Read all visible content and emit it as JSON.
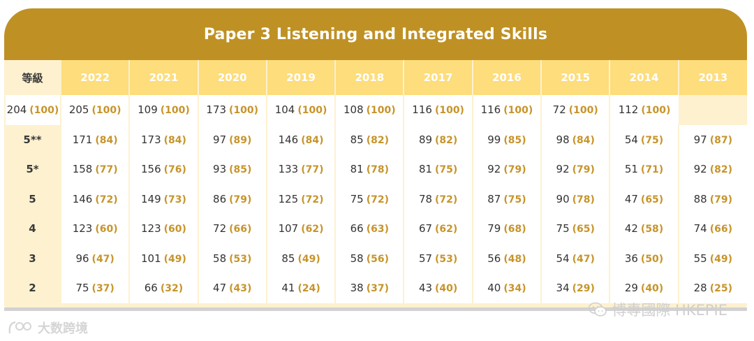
{
  "title": "Paper 3 Listening and Integrated Skills",
  "grade_column_header": "等級",
  "years": [
    "2022",
    "2021",
    "2020",
    "2019",
    "2018",
    "2017",
    "2016",
    "2015",
    "2014",
    "2013"
  ],
  "rows": [
    {
      "grade": "",
      "cells": [
        [
          "204",
          "(100)"
        ],
        [
          "205",
          "(100)"
        ],
        [
          "109",
          "(100)"
        ],
        [
          "173",
          "(100)"
        ],
        [
          "104",
          "(100)"
        ],
        [
          "108",
          "(100)"
        ],
        [
          "116",
          "(100)"
        ],
        [
          "116",
          "(100)"
        ],
        [
          "72",
          "(100)"
        ],
        [
          "112",
          "(100)"
        ]
      ]
    },
    {
      "grade": "5**",
      "cells": [
        [
          "171",
          "(84)"
        ],
        [
          "173",
          "(84)"
        ],
        [
          "97",
          "(89)"
        ],
        [
          "146",
          "(84)"
        ],
        [
          "85",
          "(82)"
        ],
        [
          "89",
          "(82)"
        ],
        [
          "99",
          "(85)"
        ],
        [
          "98",
          "(84)"
        ],
        [
          "54",
          "(75)"
        ],
        [
          "97",
          "(87)"
        ]
      ]
    },
    {
      "grade": "5*",
      "cells": [
        [
          "158",
          "(77)"
        ],
        [
          "156",
          "(76)"
        ],
        [
          "93",
          "(85)"
        ],
        [
          "133",
          "(77)"
        ],
        [
          "81",
          "(78)"
        ],
        [
          "81",
          "(75)"
        ],
        [
          "92",
          "(79)"
        ],
        [
          "92",
          "(79)"
        ],
        [
          "51",
          "(71)"
        ],
        [
          "92",
          "(82)"
        ]
      ]
    },
    {
      "grade": "5",
      "cells": [
        [
          "146",
          "(72)"
        ],
        [
          "149",
          "(73)"
        ],
        [
          "86",
          "(79)"
        ],
        [
          "125",
          "(72)"
        ],
        [
          "75",
          "(72)"
        ],
        [
          "78",
          "(72)"
        ],
        [
          "87",
          "(75)"
        ],
        [
          "90",
          "(78)"
        ],
        [
          "47",
          "(65)"
        ],
        [
          "88",
          "(79)"
        ]
      ]
    },
    {
      "grade": "4",
      "cells": [
        [
          "123",
          "(60)"
        ],
        [
          "123",
          "(60)"
        ],
        [
          "72",
          "(66)"
        ],
        [
          "107",
          "(62)"
        ],
        [
          "66",
          "(63)"
        ],
        [
          "67",
          "(62)"
        ],
        [
          "79",
          "(68)"
        ],
        [
          "75",
          "(65)"
        ],
        [
          "42",
          "(58)"
        ],
        [
          "74",
          "(66)"
        ]
      ]
    },
    {
      "grade": "3",
      "cells": [
        [
          "96",
          "(47)"
        ],
        [
          "101",
          "(49)"
        ],
        [
          "58",
          "(53)"
        ],
        [
          "85",
          "(49)"
        ],
        [
          "58",
          "(56)"
        ],
        [
          "57",
          "(53)"
        ],
        [
          "56",
          "(48)"
        ],
        [
          "54",
          "(47)"
        ],
        [
          "36",
          "(50)"
        ],
        [
          "55",
          "(49)"
        ]
      ]
    },
    {
      "grade": "2",
      "cells": [
        [
          "75",
          "(37)"
        ],
        [
          "66",
          "(32)"
        ],
        [
          "47",
          "(43)"
        ],
        [
          "41",
          "(24)"
        ],
        [
          "38",
          "(37)"
        ],
        [
          "43",
          "(40)"
        ],
        [
          "40",
          "(34)"
        ],
        [
          "34",
          "(29)"
        ],
        [
          "29",
          "(40)"
        ],
        [
          "28",
          "(25)"
        ]
      ]
    }
  ],
  "watermarks": {
    "right": "博專國際 HKEPIE",
    "left": "大数跨境"
  },
  "colors": {
    "header_bg": "#bf9124",
    "year_bg": "#fddd7c",
    "panel_bg": "#fdf1cf",
    "percent_text": "#c7942a"
  }
}
